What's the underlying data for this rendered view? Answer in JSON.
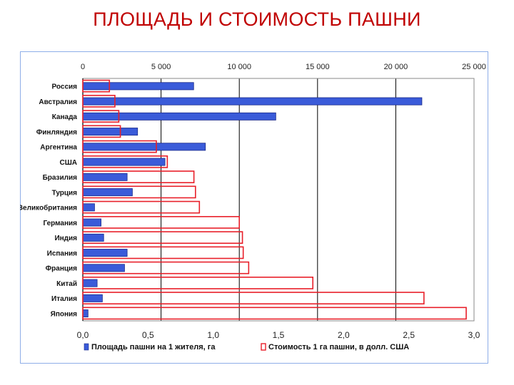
{
  "title": "ПЛОЩАДЬ И СТОИМОСТЬ ПАШНИ",
  "chart_data": {
    "type": "bar",
    "orientation": "horizontal",
    "categories": [
      "Россия",
      "Австралия",
      "Канада",
      "Финляндия",
      "Аргентина",
      "США",
      "Бразилия",
      "Турция",
      "Великобритания",
      "Германия",
      "Индия",
      "Испания",
      "Франция",
      "Китай",
      "Италия",
      "Япония"
    ],
    "series": [
      {
        "name": "Площадь пашни на 1 жителя, га",
        "axis": "bottom",
        "color": "#3a5bd9",
        "style": "filled",
        "values": [
          0.85,
          2.6,
          1.48,
          0.42,
          0.94,
          0.63,
          0.34,
          0.38,
          0.09,
          0.14,
          0.16,
          0.34,
          0.32,
          0.11,
          0.15,
          0.04
        ]
      },
      {
        "name": "Стоимость 1 га пашни, в долл. США",
        "axis": "top",
        "color": "#e8202a",
        "style": "outline",
        "values": [
          1700,
          2050,
          2300,
          2400,
          4700,
          5400,
          7100,
          7200,
          7450,
          10000,
          10200,
          10250,
          10600,
          14700,
          21800,
          24500
        ]
      }
    ],
    "top_axis": {
      "range": [
        0,
        25000
      ],
      "ticks": [
        "0",
        "5 000",
        "10 000",
        "15 000",
        "20 000",
        "25 000"
      ]
    },
    "bottom_axis": {
      "range": [
        0,
        3.0
      ],
      "ticks": [
        "0,0",
        "0,5",
        "1,0",
        "1,5",
        "2,0",
        "2,5",
        "3,0"
      ]
    },
    "grid": true,
    "legend_position": "bottom"
  }
}
